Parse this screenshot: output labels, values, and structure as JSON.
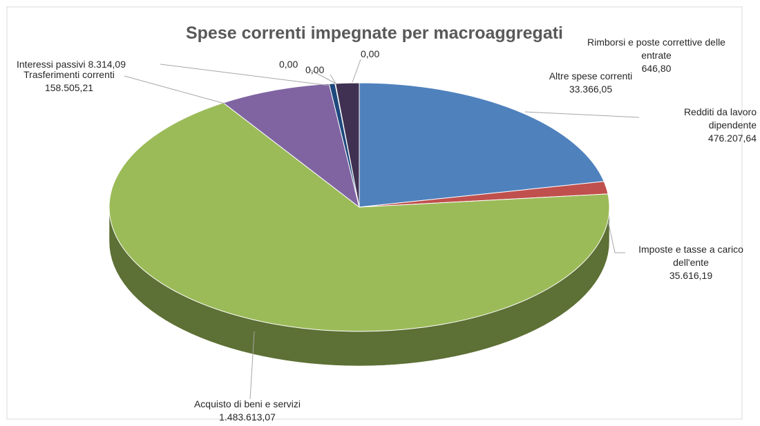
{
  "chart_data": {
    "type": "pie",
    "title": "Spese correnti impegnate per macroaggregati",
    "categories": [
      "Redditi da lavoro dipendente",
      "Imposte e tasse a carico dell'ente",
      "Acquisto di beni e servizi",
      "Trasferimenti correnti",
      "Interessi passivi",
      null,
      null,
      null,
      "Rimborsi e poste correttive delle entrate",
      "Altre spese correnti"
    ],
    "values": [
      476207.64,
      35616.19,
      1483613.07,
      158505.21,
      8314.09,
      0,
      0,
      0,
      646.8,
      33366.05
    ],
    "value_labels": [
      "476.207,64",
      "35.616,19",
      "1.483.613,07",
      "158.505,21",
      "8.314,09",
      "0,00",
      "0,00",
      "0,00",
      "646,80",
      "33.366,05"
    ],
    "colors": [
      "#4f81bd",
      "#c0504d",
      "#9bbb59",
      "#8064a2",
      "#1f497d",
      "#4bacc6",
      "#f79646",
      "#2c4d75",
      "#772c2a",
      "#403152"
    ]
  }
}
